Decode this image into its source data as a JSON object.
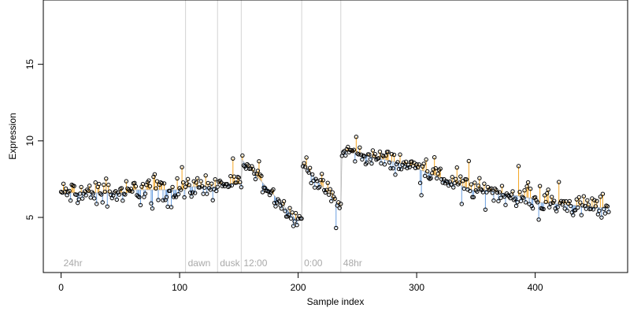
{
  "chart_data": {
    "type": "scatter",
    "title": "",
    "xlabel": "Sample index",
    "ylabel": "Expression",
    "xlim": [
      -15,
      478
    ],
    "ylim": [
      1.4,
      19.2
    ],
    "xticks": [
      0,
      100,
      200,
      300,
      400
    ],
    "yticks": [
      5,
      10,
      15
    ],
    "grid": false,
    "legend": "none",
    "colors": {
      "above_fit": "#f5a623",
      "below_fit": "#6a9fe0",
      "phase_line": "#d3d3d3",
      "point_stroke": "#000000",
      "axis": "#000000"
    },
    "phase_markers": [
      {
        "x": 0,
        "label": "24hr",
        "line": false
      },
      {
        "x": 105,
        "label": "dawn",
        "line": true
      },
      {
        "x": 132,
        "label": "dusk",
        "line": true
      },
      {
        "x": 152,
        "label": "12:00",
        "line": true
      },
      {
        "x": 203,
        "label": "0:00",
        "line": true
      },
      {
        "x": 236,
        "label": "48hr",
        "line": true
      }
    ],
    "segments": [
      {
        "x": [
          0,
          60
        ],
        "level": 6.6,
        "amp": 0.55
      },
      {
        "x": [
          60,
          105
        ],
        "level": 6.8,
        "amp": 0.7
      },
      {
        "x": [
          105,
          132
        ],
        "level": 7.0,
        "amp": 0.45
      },
      {
        "x": [
          132,
          152
        ],
        "level": 7.2,
        "amp": 0.4
      },
      {
        "x": [
          152,
          199
        ],
        "trend": [
          8.8,
          4.8
        ],
        "amp": 0.4
      },
      {
        "x": [
          199,
          203
        ],
        "level": 5.0,
        "amp": 0.2
      },
      {
        "x": [
          203,
          236
        ],
        "trend": [
          8.6,
          5.6
        ],
        "amp": 0.45
      },
      {
        "x": [
          236,
          300
        ],
        "trend": [
          9.4,
          8.3
        ],
        "amp": 0.45
      },
      {
        "x": [
          300,
          350
        ],
        "trend": [
          8.2,
          6.7
        ],
        "amp": 0.45
      },
      {
        "x": [
          350,
          400
        ],
        "trend": [
          6.9,
          6.2
        ],
        "amp": 0.5
      },
      {
        "x": [
          400,
          462
        ],
        "trend": [
          6.0,
          5.6
        ],
        "amp": 0.5
      }
    ],
    "series": [
      {
        "x_range": [
          0,
          462
        ],
        "count": 463
      }
    ]
  }
}
